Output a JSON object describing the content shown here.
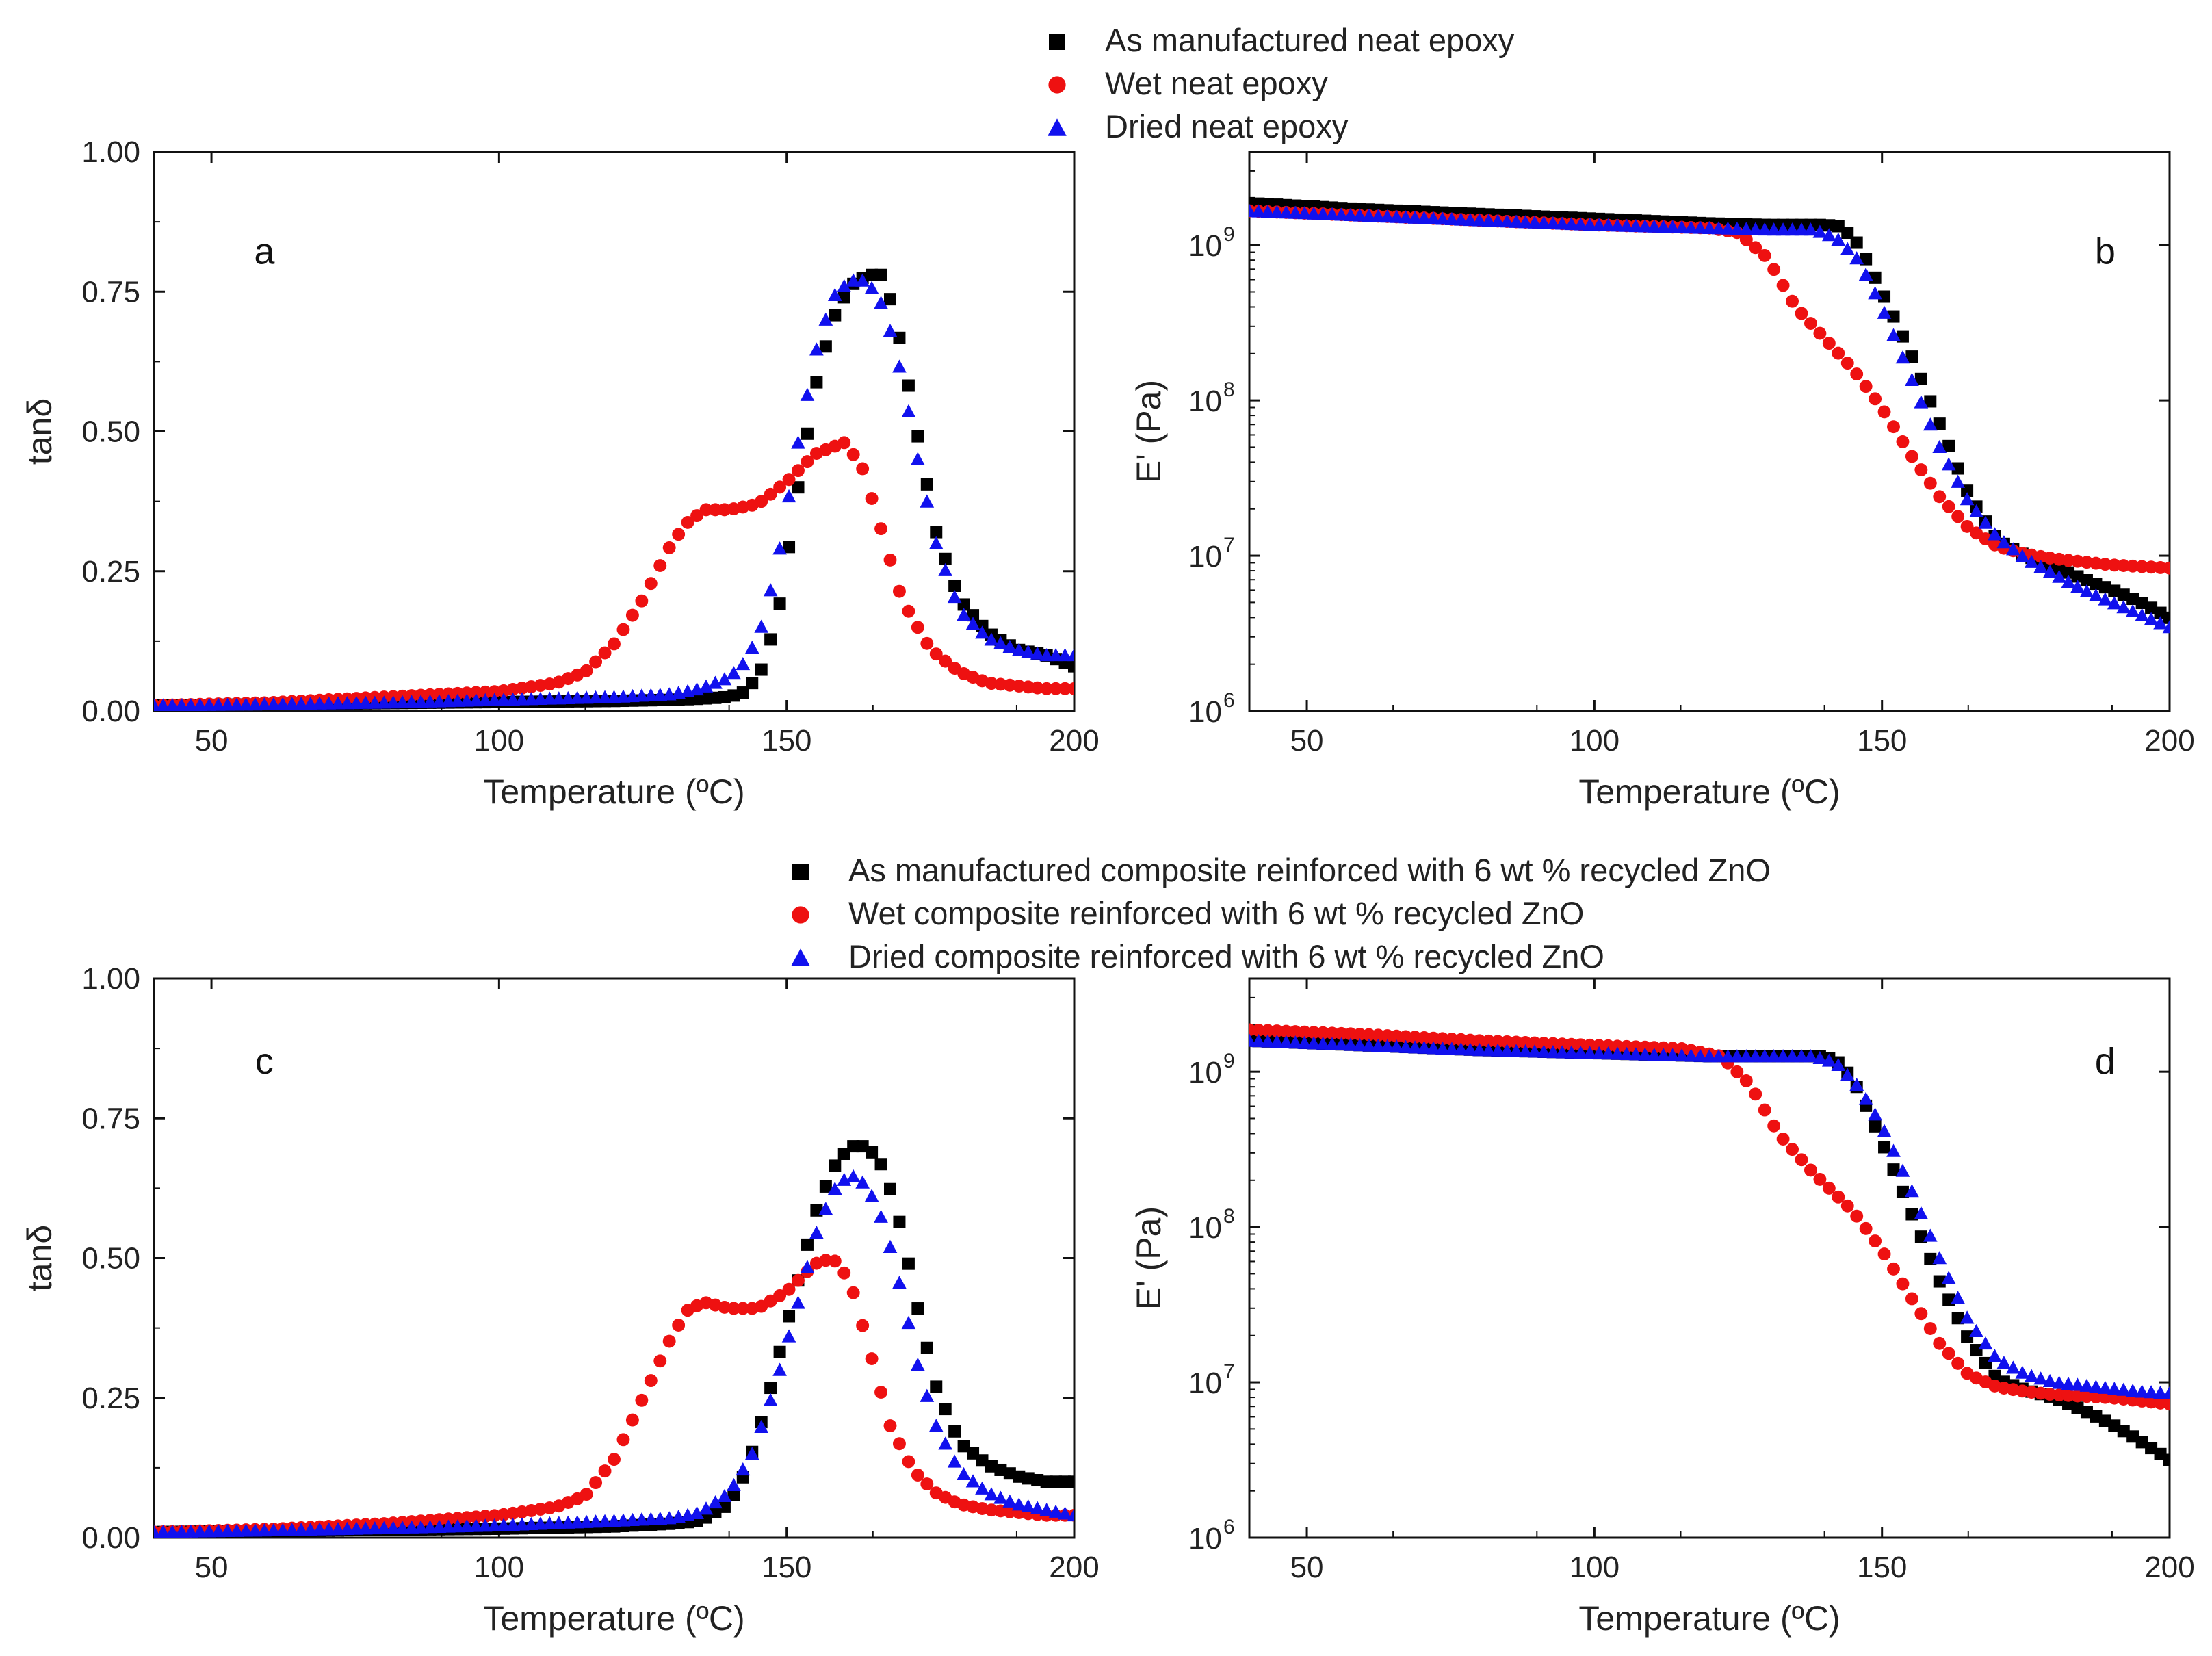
{
  "figure": {
    "legend_top": [
      {
        "label": "As manufactured neat epoxy",
        "color": "#000000",
        "marker": "square"
      },
      {
        "label": "Wet neat epoxy",
        "color": "#ee1111",
        "marker": "circle"
      },
      {
        "label": "Dried neat epoxy",
        "color": "#1111ee",
        "marker": "triangle"
      }
    ],
    "legend_bottom": [
      {
        "label": "As manufactured composite reinforced with 6 wt % recycled ZnO",
        "color": "#000000",
        "marker": "square"
      },
      {
        "label": "Wet composite reinforced with 6 wt % recycled ZnO",
        "color": "#ee1111",
        "marker": "circle"
      },
      {
        "label": "Dried composite reinforced with 6 wt % recycled ZnO",
        "color": "#1111ee",
        "marker": "triangle"
      }
    ]
  },
  "chart_data": [
    {
      "panel": "a",
      "type": "scatter",
      "scale": "linear",
      "xlabel": "Temperature (ºC)",
      "ylabel": "tanδ",
      "xlim": [
        40,
        200
      ],
      "ylim": [
        0,
        1.0
      ],
      "xticks": [
        50,
        100,
        150,
        200
      ],
      "xtick_labels": [
        "50",
        "100",
        "150",
        "200"
      ],
      "yticks": [
        0,
        0.25,
        0.5,
        0.75,
        1.0
      ],
      "ytick_labels": [
        "0.00",
        "0.25",
        "0.50",
        "0.75",
        "1.00"
      ],
      "series": [
        {
          "name": "As manufactured neat epoxy",
          "x": [
            40,
            60,
            80,
            100,
            120,
            130,
            135,
            140,
            143,
            146,
            149,
            152,
            155,
            158,
            161,
            164,
            167,
            170,
            173,
            176,
            180,
            185,
            190,
            195,
            200
          ],
          "y": [
            0.01,
            0.012,
            0.014,
            0.016,
            0.018,
            0.02,
            0.022,
            0.025,
            0.035,
            0.08,
            0.2,
            0.4,
            0.58,
            0.7,
            0.76,
            0.78,
            0.78,
            0.65,
            0.48,
            0.32,
            0.2,
            0.14,
            0.11,
            0.1,
            0.08
          ]
        },
        {
          "name": "Wet neat epoxy",
          "x": [
            40,
            60,
            80,
            100,
            110,
            115,
            120,
            125,
            130,
            133,
            136,
            140,
            145,
            150,
            155,
            160,
            163,
            166,
            170,
            175,
            180,
            185,
            190,
            195,
            200
          ],
          "y": [
            0.01,
            0.015,
            0.025,
            0.035,
            0.05,
            0.07,
            0.12,
            0.2,
            0.3,
            0.34,
            0.36,
            0.36,
            0.37,
            0.41,
            0.46,
            0.48,
            0.44,
            0.34,
            0.2,
            0.11,
            0.07,
            0.05,
            0.045,
            0.04,
            0.04
          ]
        },
        {
          "name": "Dried neat epoxy",
          "x": [
            40,
            60,
            80,
            100,
            120,
            130,
            135,
            140,
            143,
            146,
            149,
            152,
            155,
            158,
            161,
            164,
            167,
            170,
            173,
            176,
            180,
            185,
            190,
            195,
            200
          ],
          "y": [
            0.01,
            0.012,
            0.015,
            0.02,
            0.025,
            0.03,
            0.04,
            0.06,
            0.09,
            0.16,
            0.3,
            0.48,
            0.64,
            0.74,
            0.77,
            0.77,
            0.72,
            0.6,
            0.44,
            0.3,
            0.18,
            0.13,
            0.11,
            0.1,
            0.1
          ]
        }
      ]
    },
    {
      "panel": "b",
      "type": "scatter",
      "scale": "log",
      "xlabel": "Temperature (ºC)",
      "ylabel": "E' (Pa)",
      "xlim": [
        40,
        200
      ],
      "ylim_log10": [
        6,
        9.6
      ],
      "xticks": [
        50,
        100,
        150,
        200
      ],
      "xtick_labels": [
        "50",
        "100",
        "150",
        "200"
      ],
      "yticks_log10": [
        6,
        7,
        8,
        9
      ],
      "ytick_labels": [
        [
          "10",
          "6"
        ],
        [
          "10",
          "7"
        ],
        [
          "10",
          "8"
        ],
        [
          "10",
          "9"
        ]
      ],
      "series": [
        {
          "name": "As manufactured neat epoxy",
          "x": [
            40,
            60,
            80,
            100,
            120,
            130,
            140,
            143,
            146,
            150,
            155,
            160,
            165,
            170,
            175,
            180,
            185,
            190,
            195,
            200
          ],
          "log10_y": [
            9.27,
            9.23,
            9.2,
            9.17,
            9.14,
            9.13,
            9.13,
            9.12,
            9.0,
            8.7,
            8.3,
            7.85,
            7.4,
            7.1,
            7.0,
            6.93,
            6.85,
            6.78,
            6.7,
            6.6
          ]
        },
        {
          "name": "Wet neat epoxy",
          "x": [
            40,
            60,
            80,
            100,
            120,
            125,
            130,
            135,
            140,
            145,
            150,
            155,
            160,
            165,
            170,
            175,
            180,
            185,
            190,
            195,
            200
          ],
          "log10_y": [
            9.22,
            9.19,
            9.16,
            9.13,
            9.11,
            9.08,
            8.92,
            8.6,
            8.4,
            8.2,
            7.95,
            7.65,
            7.38,
            7.18,
            7.06,
            7.01,
            6.98,
            6.96,
            6.94,
            6.93,
            6.92
          ]
        },
        {
          "name": "Dried neat epoxy",
          "x": [
            40,
            60,
            80,
            100,
            120,
            130,
            138,
            142,
            146,
            150,
            155,
            160,
            165,
            170,
            175,
            180,
            185,
            190,
            195,
            200
          ],
          "log10_y": [
            9.22,
            9.19,
            9.16,
            9.13,
            9.11,
            9.1,
            9.1,
            9.05,
            8.9,
            8.6,
            8.15,
            7.7,
            7.35,
            7.12,
            6.98,
            6.88,
            6.78,
            6.7,
            6.62,
            6.54
          ]
        }
      ]
    },
    {
      "panel": "c",
      "type": "scatter",
      "scale": "linear",
      "xlabel": "Temperature (ºC)",
      "ylabel": "tanδ",
      "xlim": [
        40,
        200
      ],
      "ylim": [
        0,
        1.0
      ],
      "xticks": [
        50,
        100,
        150,
        200
      ],
      "xtick_labels": [
        "50",
        "100",
        "150",
        "200"
      ],
      "yticks": [
        0,
        0.25,
        0.5,
        0.75,
        1.0
      ],
      "ytick_labels": [
        "0.00",
        "0.25",
        "0.50",
        "0.75",
        "1.00"
      ],
      "series": [
        {
          "name": "As manufactured composite reinforced with 6 wt % recycled ZnO",
          "x": [
            40,
            60,
            80,
            100,
            120,
            130,
            135,
            140,
            143,
            146,
            149,
            152,
            155,
            158,
            161,
            164,
            167,
            170,
            173,
            176,
            180,
            185,
            190,
            195,
            200
          ],
          "y": [
            0.01,
            0.012,
            0.014,
            0.016,
            0.02,
            0.025,
            0.03,
            0.06,
            0.12,
            0.22,
            0.34,
            0.46,
            0.58,
            0.66,
            0.7,
            0.7,
            0.66,
            0.55,
            0.4,
            0.27,
            0.17,
            0.13,
            0.11,
            0.1,
            0.1
          ]
        },
        {
          "name": "Wet composite reinforced with 6 wt % recycled ZnO",
          "x": [
            40,
            60,
            80,
            100,
            110,
            115,
            120,
            125,
            130,
            133,
            136,
            140,
            145,
            150,
            155,
            158,
            161,
            164,
            168,
            172,
            176,
            180,
            185,
            190,
            195,
            200
          ],
          "y": [
            0.01,
            0.015,
            0.025,
            0.04,
            0.055,
            0.075,
            0.14,
            0.25,
            0.36,
            0.41,
            0.42,
            0.41,
            0.41,
            0.44,
            0.49,
            0.5,
            0.46,
            0.35,
            0.2,
            0.12,
            0.08,
            0.06,
            0.05,
            0.045,
            0.04,
            0.04
          ]
        },
        {
          "name": "Dried composite reinforced with 6 wt % recycled ZnO",
          "x": [
            40,
            60,
            80,
            100,
            120,
            130,
            135,
            140,
            144,
            148,
            152,
            155,
            158,
            161,
            164,
            167,
            170,
            173,
            176,
            180,
            185,
            190,
            195,
            200
          ],
          "y": [
            0.01,
            0.013,
            0.017,
            0.022,
            0.03,
            0.035,
            0.045,
            0.08,
            0.15,
            0.27,
            0.42,
            0.54,
            0.62,
            0.65,
            0.63,
            0.56,
            0.44,
            0.3,
            0.2,
            0.12,
            0.08,
            0.06,
            0.05,
            0.04
          ]
        }
      ]
    },
    {
      "panel": "d",
      "type": "scatter",
      "scale": "log",
      "xlabel": "Temperature (ºC)",
      "ylabel": "E' (Pa)",
      "xlim": [
        40,
        200
      ],
      "ylim_log10": [
        6,
        9.6
      ],
      "xticks": [
        50,
        100,
        150,
        200
      ],
      "xtick_labels": [
        "50",
        "100",
        "150",
        "200"
      ],
      "yticks_log10": [
        6,
        7,
        8,
        9
      ],
      "ytick_labels": [
        [
          "10",
          "6"
        ],
        [
          "10",
          "7"
        ],
        [
          "10",
          "8"
        ],
        [
          "10",
          "9"
        ]
      ],
      "series": [
        {
          "name": "As manufactured composite reinforced with 6 wt % recycled ZnO",
          "x": [
            40,
            60,
            80,
            100,
            120,
            130,
            140,
            143,
            146,
            150,
            155,
            160,
            165,
            170,
            175,
            180,
            185,
            190,
            195,
            200
          ],
          "log10_y": [
            9.2,
            9.17,
            9.14,
            9.12,
            9.1,
            9.1,
            9.1,
            9.05,
            8.88,
            8.55,
            8.1,
            7.65,
            7.28,
            7.02,
            6.95,
            6.9,
            6.82,
            6.73,
            6.62,
            6.5
          ]
        },
        {
          "name": "Wet composite reinforced with 6 wt % recycled ZnO",
          "x": [
            40,
            60,
            80,
            100,
            115,
            122,
            127,
            132,
            138,
            145,
            150,
            155,
            160,
            165,
            170,
            175,
            180,
            185,
            190,
            195,
            200
          ],
          "log10_y": [
            9.27,
            9.24,
            9.2,
            9.17,
            9.15,
            9.1,
            8.92,
            8.6,
            8.35,
            8.1,
            7.85,
            7.55,
            7.25,
            7.05,
            6.97,
            6.94,
            6.92,
            6.91,
            6.9,
            6.88,
            6.86
          ]
        },
        {
          "name": "Dried composite reinforced with 6 wt % recycled ZnO",
          "x": [
            40,
            60,
            80,
            100,
            120,
            130,
            138,
            142,
            146,
            150,
            155,
            160,
            165,
            170,
            175,
            180,
            185,
            190,
            195,
            200
          ],
          "log10_y": [
            9.2,
            9.17,
            9.14,
            9.12,
            9.1,
            9.1,
            9.1,
            9.06,
            8.9,
            8.65,
            8.25,
            7.8,
            7.4,
            7.15,
            7.05,
            7.0,
            6.98,
            6.96,
            6.94,
            6.93
          ]
        }
      ]
    }
  ]
}
